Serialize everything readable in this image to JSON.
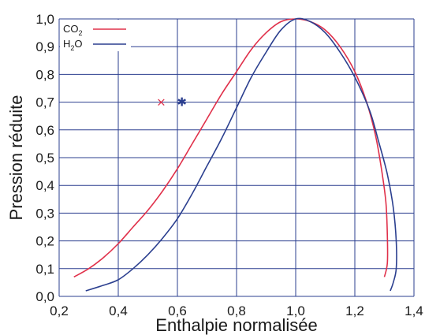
{
  "chart_data": {
    "type": "line",
    "xlabel": "Enthalpie normalisée",
    "ylabel": "Pression réduite",
    "xlim": [
      0.2,
      1.4
    ],
    "ylim": [
      0.0,
      1.0
    ],
    "grid": true,
    "legend_position": "top-left",
    "x_ticks": [
      "0,2",
      "0,4",
      "0,6",
      "0,8",
      "1,0",
      "1,2",
      "1,4"
    ],
    "y_ticks": [
      "0,0",
      "0,1",
      "0,2",
      "0,3",
      "0,4",
      "0,5",
      "0,6",
      "0,7",
      "0,8",
      "0,9",
      "1,0"
    ],
    "series": [
      {
        "name": "CO2",
        "legend_main": "CO",
        "legend_sub": "2",
        "legend_order": "main-sub",
        "color": "#e0304a",
        "points": [
          [
            0.25,
            0.07
          ],
          [
            0.3,
            0.1
          ],
          [
            0.35,
            0.14
          ],
          [
            0.4,
            0.19
          ],
          [
            0.45,
            0.25
          ],
          [
            0.5,
            0.31
          ],
          [
            0.55,
            0.38
          ],
          [
            0.6,
            0.46
          ],
          [
            0.65,
            0.55
          ],
          [
            0.7,
            0.64
          ],
          [
            0.75,
            0.73
          ],
          [
            0.8,
            0.81
          ],
          [
            0.85,
            0.89
          ],
          [
            0.9,
            0.95
          ],
          [
            0.95,
            0.99
          ],
          [
            1.0,
            1.0
          ],
          [
            1.05,
            0.99
          ],
          [
            1.1,
            0.96
          ],
          [
            1.15,
            0.9
          ],
          [
            1.2,
            0.81
          ],
          [
            1.24,
            0.7
          ],
          [
            1.27,
            0.58
          ],
          [
            1.29,
            0.46
          ],
          [
            1.305,
            0.34
          ],
          [
            1.31,
            0.22
          ],
          [
            1.31,
            0.12
          ],
          [
            1.3,
            0.07
          ]
        ],
        "marker": {
          "symbol": "×",
          "x": 0.545,
          "y": 0.7
        }
      },
      {
        "name": "H2O",
        "legend_main": "O",
        "legend_sub": "2",
        "legend_prefix": "H",
        "legend_order": "prefix-sub-main",
        "color": "#2b3f8f",
        "points": [
          [
            0.29,
            0.02
          ],
          [
            0.35,
            0.04
          ],
          [
            0.4,
            0.06
          ],
          [
            0.45,
            0.1
          ],
          [
            0.5,
            0.15
          ],
          [
            0.55,
            0.21
          ],
          [
            0.6,
            0.28
          ],
          [
            0.65,
            0.37
          ],
          [
            0.7,
            0.47
          ],
          [
            0.75,
            0.57
          ],
          [
            0.8,
            0.68
          ],
          [
            0.85,
            0.79
          ],
          [
            0.9,
            0.88
          ],
          [
            0.95,
            0.96
          ],
          [
            1.0,
            1.0
          ],
          [
            1.05,
            0.99
          ],
          [
            1.1,
            0.95
          ],
          [
            1.15,
            0.88
          ],
          [
            1.2,
            0.79
          ],
          [
            1.25,
            0.67
          ],
          [
            1.28,
            0.56
          ],
          [
            1.31,
            0.44
          ],
          [
            1.33,
            0.32
          ],
          [
            1.34,
            0.2
          ],
          [
            1.34,
            0.1
          ],
          [
            1.33,
            0.05
          ],
          [
            1.32,
            0.02
          ]
        ],
        "marker": {
          "symbol": "✱",
          "x": 0.615,
          "y": 0.7
        }
      }
    ]
  }
}
